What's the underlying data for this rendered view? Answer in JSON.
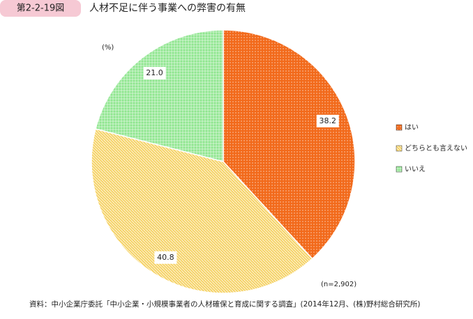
{
  "chart_data": {
    "type": "pie",
    "figure_number": "第2-2-19図",
    "title": "人材不足に伴う事業への弊害の有無",
    "unit_note": "(%)",
    "sample_note": "(n=2,902)",
    "source": "資料：中小企業庁委託「中小企業・小規模事業者の人材確保と育成に関する調査」(2014年12月、(株)野村総合研究所)",
    "categories": [
      "はい",
      "どちらとも言えない",
      "いいえ"
    ],
    "values": [
      38.2,
      40.8,
      21.0
    ],
    "value_labels": [
      "38.2",
      "40.8",
      "21.0"
    ],
    "colors": [
      "#f26a1b",
      "#f6d46a",
      "#8fe68f"
    ],
    "legend": "right"
  }
}
